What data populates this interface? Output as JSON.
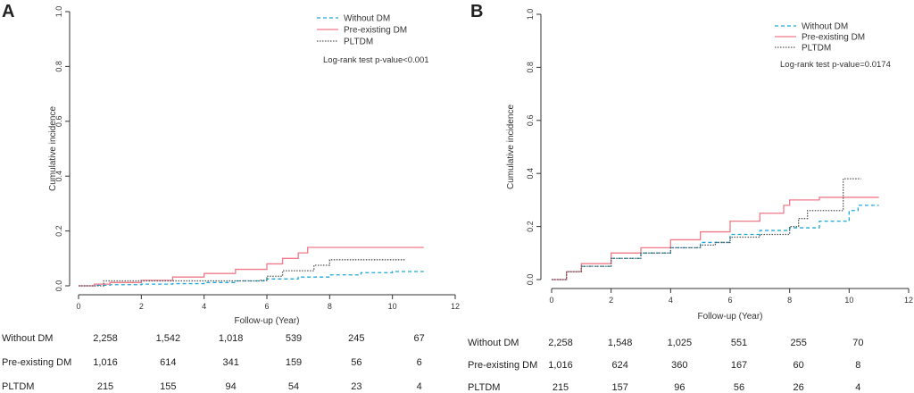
{
  "chart_data": [
    {
      "panel": "A",
      "type": "line",
      "ylabel": "Cumulative incidence",
      "xlabel": "Follow-up (Year)",
      "xlim": [
        0,
        12
      ],
      "ylim": [
        0,
        1.0
      ],
      "xticks": [
        "0",
        "2",
        "4",
        "6",
        "8",
        "10",
        "12"
      ],
      "yticks": [
        "0.0",
        "0.2",
        "0.4",
        "0.6",
        "0.8",
        "1.0"
      ],
      "annotation": "Log-rank test p-value<0.001",
      "legend_position": "top-right",
      "series": [
        {
          "name": "Without DM",
          "color": "#1fa8d8",
          "dash": "dashed",
          "points": [
            [
              0,
              0
            ],
            [
              0.5,
              0.002
            ],
            [
              1,
              0.004
            ],
            [
              2,
              0.006
            ],
            [
              3,
              0.008
            ],
            [
              4,
              0.012
            ],
            [
              5,
              0.018
            ],
            [
              6,
              0.025
            ],
            [
              7,
              0.032
            ],
            [
              8,
              0.04
            ],
            [
              9,
              0.048
            ],
            [
              10,
              0.052
            ],
            [
              11,
              0.052
            ]
          ]
        },
        {
          "name": "Pre-existing DM",
          "color": "#f07a8a",
          "dash": "solid",
          "points": [
            [
              0,
              0
            ],
            [
              0.5,
              0.006
            ],
            [
              1,
              0.012
            ],
            [
              2,
              0.02
            ],
            [
              3,
              0.032
            ],
            [
              4,
              0.045
            ],
            [
              5,
              0.06
            ],
            [
              6,
              0.08
            ],
            [
              6.5,
              0.1
            ],
            [
              7,
              0.12
            ],
            [
              7.3,
              0.14
            ],
            [
              8,
              0.14
            ],
            [
              11,
              0.14
            ]
          ]
        },
        {
          "name": "PLTDM",
          "color": "#555555",
          "dash": "dotted",
          "points": [
            [
              0,
              0
            ],
            [
              0.8,
              0.018
            ],
            [
              2,
              0.018
            ],
            [
              4,
              0.018
            ],
            [
              5.8,
              0.02
            ],
            [
              6,
              0.035
            ],
            [
              6.5,
              0.055
            ],
            [
              7.5,
              0.075
            ],
            [
              8,
              0.095
            ],
            [
              10.4,
              0.095
            ]
          ]
        }
      ],
      "risk_table": {
        "times": [
          0,
          2,
          4,
          6,
          8,
          10
        ],
        "rows": [
          {
            "label": "Without DM",
            "values": [
              "2,258",
              "1,542",
              "1,018",
              "539",
              "245",
              "67"
            ]
          },
          {
            "label": "Pre-existing DM",
            "values": [
              "1,016",
              "614",
              "341",
              "159",
              "56",
              "6"
            ]
          },
          {
            "label": "PLTDM",
            "values": [
              "215",
              "155",
              "94",
              "54",
              "23",
              "4"
            ]
          }
        ]
      }
    },
    {
      "panel": "B",
      "type": "line",
      "ylabel": "Cumulative incidence",
      "xlabel": "Follow-up (Year)",
      "xlim": [
        0,
        12
      ],
      "ylim": [
        0,
        1.0
      ],
      "xticks": [
        "0",
        "2",
        "4",
        "6",
        "8",
        "10",
        "12"
      ],
      "yticks": [
        "0.0",
        "0.2",
        "0.4",
        "0.6",
        "0.8",
        "1.0"
      ],
      "annotation": "Log-rank test p-value=0.0174",
      "legend_position": "top-right",
      "series": [
        {
          "name": "Without DM",
          "color": "#1fa8d8",
          "dash": "dashed",
          "points": [
            [
              0,
              0
            ],
            [
              0.5,
              0.03
            ],
            [
              1,
              0.05
            ],
            [
              2,
              0.08
            ],
            [
              3,
              0.1
            ],
            [
              4,
              0.12
            ],
            [
              5,
              0.14
            ],
            [
              6,
              0.17
            ],
            [
              7,
              0.185
            ],
            [
              8,
              0.195
            ],
            [
              9,
              0.22
            ],
            [
              10,
              0.26
            ],
            [
              10.3,
              0.28
            ],
            [
              11,
              0.28
            ]
          ]
        },
        {
          "name": "Pre-existing DM",
          "color": "#f07a8a",
          "dash": "solid",
          "points": [
            [
              0,
              0
            ],
            [
              0.5,
              0.03
            ],
            [
              1,
              0.06
            ],
            [
              2,
              0.1
            ],
            [
              3,
              0.12
            ],
            [
              4,
              0.15
            ],
            [
              5,
              0.18
            ],
            [
              6,
              0.22
            ],
            [
              7,
              0.25
            ],
            [
              7.8,
              0.28
            ],
            [
              8,
              0.3
            ],
            [
              9,
              0.31
            ],
            [
              11,
              0.31
            ]
          ]
        },
        {
          "name": "PLTDM",
          "color": "#555555",
          "dash": "dotted",
          "points": [
            [
              0,
              0
            ],
            [
              0.5,
              0.03
            ],
            [
              1,
              0.05
            ],
            [
              2,
              0.08
            ],
            [
              3,
              0.1
            ],
            [
              4,
              0.12
            ],
            [
              5,
              0.13
            ],
            [
              5.5,
              0.14
            ],
            [
              6,
              0.16
            ],
            [
              7,
              0.17
            ],
            [
              8,
              0.2
            ],
            [
              8.3,
              0.23
            ],
            [
              8.6,
              0.26
            ],
            [
              9.7,
              0.26
            ],
            [
              9.8,
              0.38
            ],
            [
              10.4,
              0.38
            ]
          ]
        }
      ],
      "risk_table": {
        "times": [
          0,
          2,
          4,
          6,
          8,
          10
        ],
        "rows": [
          {
            "label": "Without DM",
            "values": [
              "2,258",
              "1,548",
              "1,025",
              "551",
              "255",
              "70"
            ]
          },
          {
            "label": "Pre-existing DM",
            "values": [
              "1,016",
              "624",
              "360",
              "167",
              "60",
              "8"
            ]
          },
          {
            "label": "PLTDM",
            "values": [
              "215",
              "157",
              "96",
              "56",
              "26",
              "4"
            ]
          }
        ]
      }
    }
  ]
}
